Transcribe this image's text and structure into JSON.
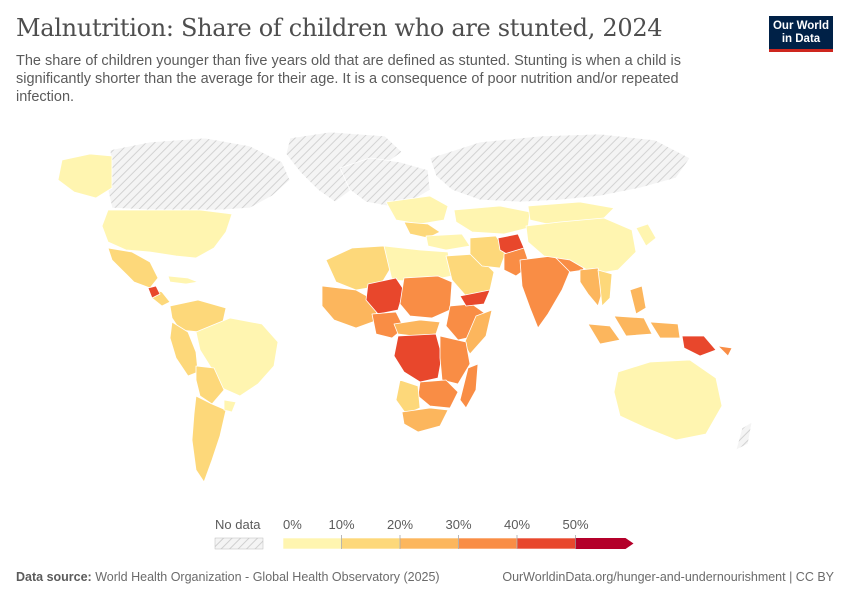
{
  "header": {
    "title": "Malnutrition: Share of children who are stunted, 2024",
    "subtitle": "The share of children younger than five years old that are defined as stunted. Stunting is when a child is significantly shorter than the average for their age. It is a consequence of poor nutrition and/or repeated infection.",
    "logo_line1": "Our World",
    "logo_line2": "in Data"
  },
  "legend": {
    "no_data_label": "No data",
    "ticks": [
      "0%",
      "10%",
      "20%",
      "30%",
      "40%",
      "50%"
    ],
    "colors": [
      "#fff5b0",
      "#fdd87a",
      "#fcb65d",
      "#f98d45",
      "#e8472c",
      "#b4002a"
    ]
  },
  "footer": {
    "source_label": "Data source:",
    "source_text": "World Health Organization - Global Health Observatory (2025)",
    "url_text": "OurWorldinData.org/hunger-and-undernourishment | CC BY"
  },
  "map_style": {
    "no_data_hatch": "#d8d8d8",
    "border": "#ffffff"
  }
}
